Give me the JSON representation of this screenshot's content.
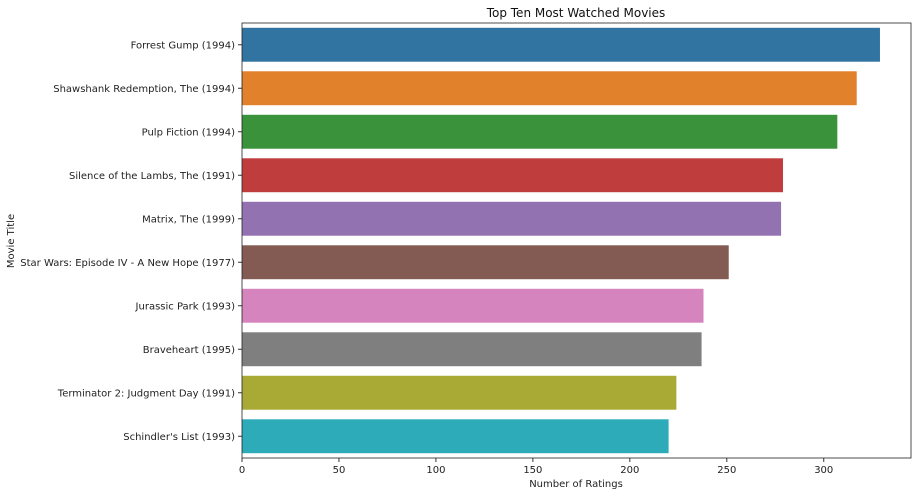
{
  "chart_data": {
    "type": "bar",
    "orientation": "horizontal",
    "title": "Top Ten Most Watched Movies",
    "xlabel": "Number of Ratings",
    "ylabel": "Movie Title",
    "xlim": [
      0,
      345
    ],
    "xticks": [
      "0",
      "50",
      "100",
      "150",
      "200",
      "250",
      "300"
    ],
    "grid": false,
    "categories": [
      "Forrest Gump (1994)",
      "Shawshank Redemption, The (1994)",
      "Pulp Fiction (1994)",
      "Silence of the Lambs, The (1991)",
      "Matrix, The (1999)",
      "Star Wars: Episode IV - A New Hope (1977)",
      "Jurassic Park (1993)",
      "Braveheart (1995)",
      "Terminator 2: Judgment Day (1991)",
      "Schindler's List (1993)"
    ],
    "values": [
      329,
      317,
      307,
      279,
      278,
      251,
      238,
      237,
      224,
      220
    ],
    "colors": [
      "#3274a1",
      "#e1812c",
      "#3a923a",
      "#c03d3e",
      "#9372b2",
      "#845b53",
      "#d684bd",
      "#7f7f7f",
      "#a9aa35",
      "#2eabb8"
    ]
  }
}
